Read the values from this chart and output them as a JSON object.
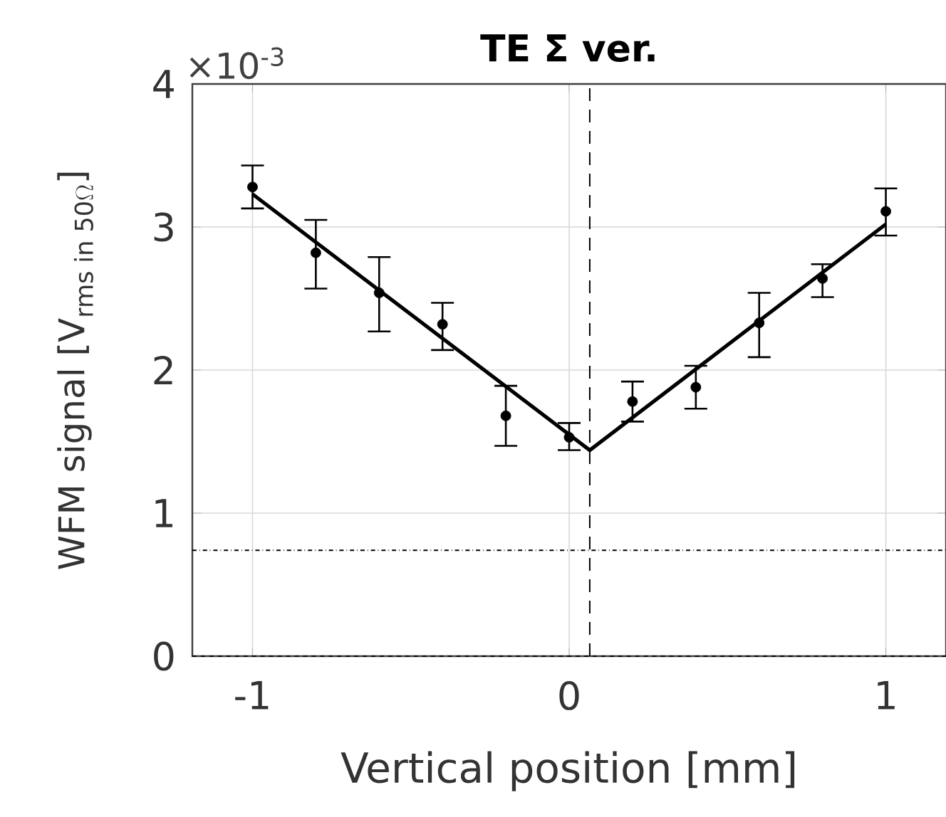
{
  "chart_data": {
    "type": "scatter",
    "title": "TE Σ ver.",
    "xlabel": "Vertical position [mm]",
    "ylabel": "\\text{WFM signal [V}_{\\text{rms in 50}\\Omega}\\text{]}",
    "annotations": [
      "×10$^{-3}$"
    ],
    "xlim": [
      -1.19,
      1.19
    ],
    "ylim": [
      0,
      4
    ],
    "xticks": [
      -1,
      0,
      1
    ],
    "yticks": [
      0,
      1,
      2,
      3,
      4
    ],
    "grid": true,
    "series": [
      {
        "color": "#000000",
        "marker": "circle",
        "x": [
          -1,
          -0.8,
          -0.6,
          -0.4,
          -0.2,
          0,
          0.2,
          0.4,
          0.6,
          0.8,
          1
        ],
        "values": [
          3.28,
          2.82,
          2.54,
          2.32,
          1.68,
          1.53,
          1.78,
          1.88,
          2.33,
          2.64,
          3.11
        ],
        "errors": [
          [
            3.13,
            3.43
          ],
          [
            2.57,
            3.05
          ],
          [
            2.27,
            2.79
          ],
          [
            2.14,
            2.47
          ],
          [
            1.47,
            1.89
          ],
          [
            1.44,
            1.63
          ],
          [
            1.64,
            1.92
          ],
          [
            1.73,
            2.03
          ],
          [
            2.09,
            2.54
          ],
          [
            2.51,
            2.74
          ],
          [
            2.94,
            3.27
          ]
        ]
      },
      {
        "type": "line",
        "color": "#000000",
        "marker": "none",
        "line_style": "solid",
        "x": [
          -1,
          0.065,
          1
        ],
        "values": [
          3.23,
          1.44,
          3.02
        ]
      }
    ],
    "ref_lines": [
      {
        "axis": "x",
        "value": 0.065,
        "line_style": "dashed",
        "color": "#000000"
      },
      {
        "axis": "y",
        "value": 0.74,
        "line_style": "dashdot",
        "color": "#000000"
      },
      {
        "axis": "y",
        "value": 0,
        "line_style": "dashed",
        "color": "#000000"
      }
    ]
  }
}
